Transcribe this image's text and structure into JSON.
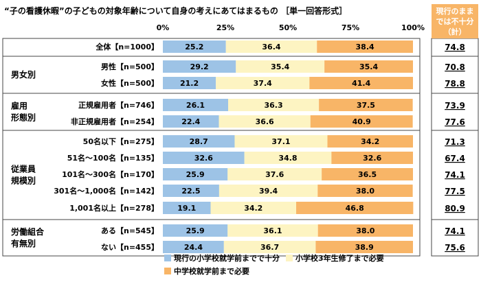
{
  "chart_data": {
    "type": "bar",
    "stacked": true,
    "orientation": "horizontal",
    "title": "“子の看護休暇”の子どもの対象年齢について自身の考えにあてはまるもの ［単一回答形式］",
    "x_ticks": [
      "0%",
      "25%",
      "50%",
      "75%",
      "100%"
    ],
    "xlim": [
      0,
      100
    ],
    "side_header": [
      "現行のまま",
      "では不十分",
      "（計）"
    ],
    "series": [
      {
        "name": "現行の小学校就学前までで十分",
        "color": "#9dc3e6"
      },
      {
        "name": "小学校3年生修了まで必要",
        "color": "#fdf4c2"
      },
      {
        "name": "中学校就学前まで必要",
        "color": "#f8b567"
      }
    ],
    "groups": [
      {
        "label": [],
        "rows": [
          0
        ]
      },
      {
        "label": [
          "男女別"
        ],
        "rows": [
          1,
          2
        ]
      },
      {
        "label": [
          "雇用",
          "形態別"
        ],
        "rows": [
          3,
          4
        ]
      },
      {
        "label": [
          "従業員",
          "規模別"
        ],
        "rows": [
          5,
          6,
          7,
          8,
          9
        ]
      },
      {
        "label": [
          "労働組合",
          "有無別"
        ],
        "rows": [
          10,
          11
        ]
      }
    ],
    "rows": [
      {
        "label": "全体【n=1000】",
        "values": [
          25.2,
          36.4,
          38.4
        ],
        "total": "74.8"
      },
      {
        "label": "男性【n=500】",
        "values": [
          29.2,
          35.4,
          35.4
        ],
        "total": "70.8"
      },
      {
        "label": "女性【n=500】",
        "values": [
          21.2,
          37.4,
          41.4
        ],
        "total": "78.8"
      },
      {
        "label": "正規雇用者【n=746】",
        "values": [
          26.1,
          36.3,
          37.5
        ],
        "total": "73.9"
      },
      {
        "label": "非正規雇用者【n=254】",
        "values": [
          22.4,
          36.6,
          40.9
        ],
        "total": "77.6"
      },
      {
        "label": "50名以下【n=275】",
        "values": [
          28.7,
          37.1,
          34.2
        ],
        "total": "71.3"
      },
      {
        "label": "51名～100名【n=135】",
        "values": [
          32.6,
          34.8,
          32.6
        ],
        "total": "67.4"
      },
      {
        "label": "101名～300名【n=170】",
        "values": [
          25.9,
          37.6,
          36.5
        ],
        "total": "74.1"
      },
      {
        "label": "301名～1,000名【n=142】",
        "values": [
          22.5,
          39.4,
          38.0
        ],
        "total": "77.5"
      },
      {
        "label": "1,001名以上【n=278】",
        "values": [
          19.1,
          34.2,
          46.8
        ],
        "total": "80.9"
      },
      {
        "label": "ある【n=545】",
        "values": [
          25.9,
          36.1,
          38.0
        ],
        "total": "74.1"
      },
      {
        "label": "ない【n=455】",
        "values": [
          24.4,
          36.7,
          38.9
        ],
        "total": "75.6"
      }
    ]
  }
}
